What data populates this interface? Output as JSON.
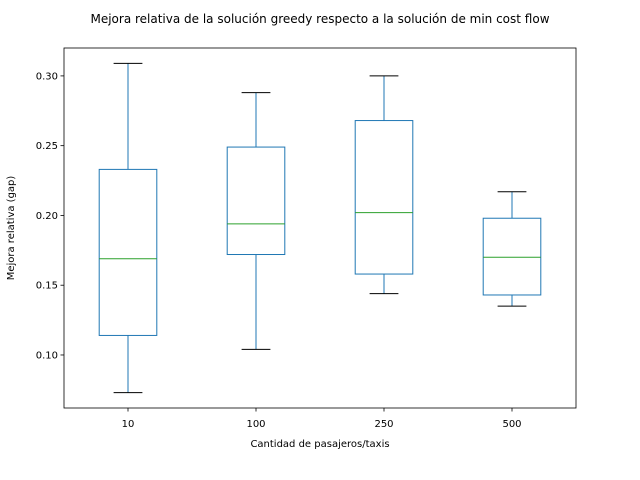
{
  "chart_data": {
    "type": "box",
    "title": "Mejora relativa de la solución greedy respecto a la solución de min cost flow",
    "xlabel": "Cantidad de pasajeros/taxis",
    "ylabel": "Mejora relativa (gap)",
    "ylim": [
      0.062,
      0.32
    ],
    "yticks": [
      "0.10",
      "0.15",
      "0.20",
      "0.25",
      "0.30"
    ],
    "ytick_values": [
      0.1,
      0.15,
      0.2,
      0.25,
      0.3
    ],
    "grid": false,
    "categories": [
      "10",
      "100",
      "250",
      "500"
    ],
    "boxes": [
      {
        "category": "10",
        "whisker_low": 0.073,
        "q1": 0.114,
        "median": 0.169,
        "q3": 0.233,
        "whisker_high": 0.309
      },
      {
        "category": "100",
        "whisker_low": 0.104,
        "q1": 0.172,
        "median": 0.194,
        "q3": 0.249,
        "whisker_high": 0.288
      },
      {
        "category": "250",
        "whisker_low": 0.144,
        "q1": 0.158,
        "median": 0.202,
        "q3": 0.268,
        "whisker_high": 0.3
      },
      {
        "category": "500",
        "whisker_low": 0.135,
        "q1": 0.143,
        "median": 0.17,
        "q3": 0.198,
        "whisker_high": 0.217
      }
    ],
    "colors": {
      "box": "#1f77b4",
      "median": "#2ca02c",
      "cap": "#000000",
      "axes": "#000000"
    }
  }
}
